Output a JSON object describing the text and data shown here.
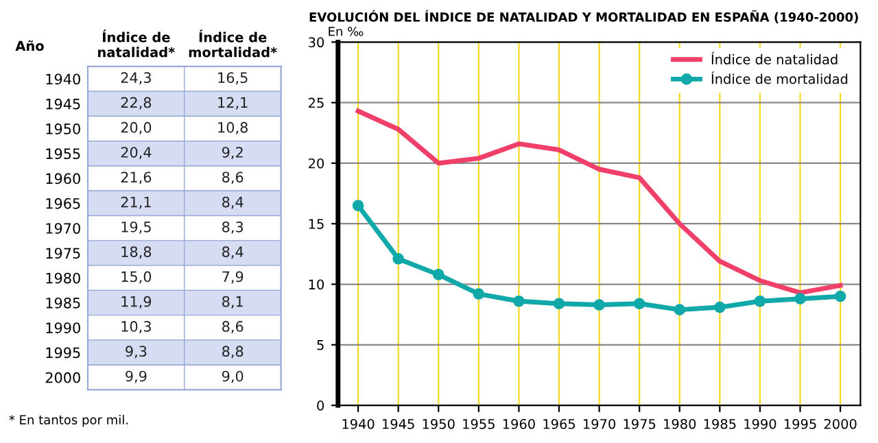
{
  "chart_data": [
    {
      "type": "heatmap",
      "ylabel": "Año",
      "categories": [
        "Índice de\nnatalidad*",
        "Índice de\nmortalidad*"
      ],
      "y_categories": [
        "1940",
        "1945",
        "1950",
        "1955",
        "1960",
        "1965",
        "1970",
        "1975",
        "1980",
        "1985",
        "1990",
        "1995",
        "2000"
      ],
      "cells": [
        [
          24.3,
          16.5
        ],
        [
          22.8,
          12.1
        ],
        [
          20.0,
          10.8
        ],
        [
          20.4,
          9.2
        ],
        [
          21.6,
          8.6
        ],
        [
          21.1,
          8.4
        ],
        [
          19.5,
          8.3
        ],
        [
          18.8,
          8.4
        ],
        [
          15.0,
          7.9
        ],
        [
          11.9,
          8.1
        ],
        [
          10.3,
          8.6
        ],
        [
          9.3,
          8.8
        ],
        [
          9.9,
          9.0
        ]
      ],
      "cell_labels": [
        [
          "24,3",
          "16,5"
        ],
        [
          "22,8",
          "12,1"
        ],
        [
          "20,0",
          "10,8"
        ],
        [
          "20,4",
          "9,2"
        ],
        [
          "21,6",
          "8,6"
        ],
        [
          "21,1",
          "8,4"
        ],
        [
          "19,5",
          "8,3"
        ],
        [
          "18,8",
          "8,4"
        ],
        [
          "15,0",
          "7,9"
        ],
        [
          "11,9",
          "8,1"
        ],
        [
          "10,3",
          "8,6"
        ],
        [
          "9,3",
          "8,8"
        ],
        [
          "9,9",
          "9,0"
        ]
      ],
      "annotations": [
        "* En tantos por mil."
      ]
    },
    {
      "type": "line",
      "title": "EVOLUCIÓN DEL ÍNDICE DE NATALIDAD Y MORTALIDAD EN ESPAÑA (1940-2000)",
      "ylabel": "En ‰",
      "categories": [
        "1940",
        "1945",
        "1950",
        "1955",
        "1960",
        "1965",
        "1970",
        "1975",
        "1980",
        "1985",
        "1990",
        "1995",
        "2000"
      ],
      "series": [
        {
          "name": "Índice de natalidad",
          "color": "#f0406a",
          "marker": "none",
          "values": [
            24.3,
            22.8,
            20.0,
            20.4,
            21.6,
            21.1,
            19.5,
            18.8,
            15.0,
            11.9,
            10.3,
            9.3,
            9.9
          ]
        },
        {
          "name": "Índice de mortalidad",
          "color": "#10a8a8",
          "marker": "circle",
          "values": [
            16.5,
            12.1,
            10.8,
            9.2,
            8.6,
            8.4,
            8.3,
            8.4,
            7.9,
            8.1,
            8.6,
            8.8,
            9.0
          ]
        }
      ],
      "ylim": [
        0,
        30
      ],
      "yticks": [
        0,
        5,
        10,
        15,
        20,
        25,
        30
      ],
      "grid": true,
      "legend": "top right"
    }
  ]
}
